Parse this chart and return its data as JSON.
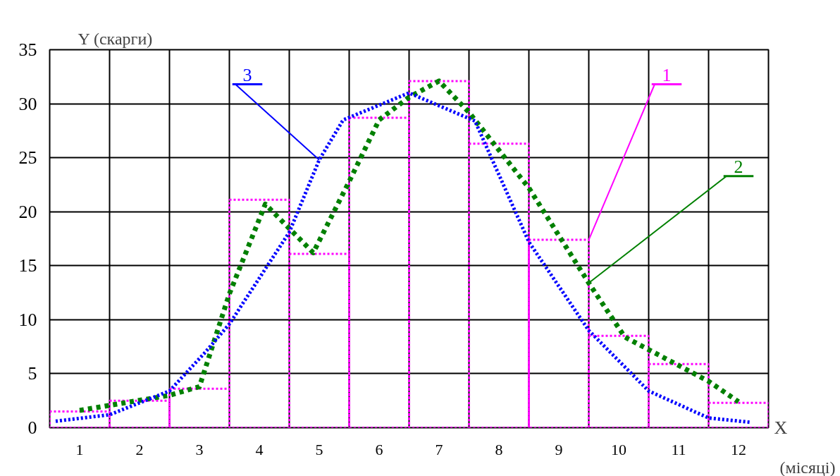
{
  "chart_data": {
    "type": "line",
    "ylabel": "Y (скарги)",
    "xlabel": "X",
    "annotations": [
      "(місяці)"
    ],
    "xlim": [
      0.5,
      12.5
    ],
    "ylim": [
      0,
      35
    ],
    "yticks": [
      0,
      5,
      10,
      15,
      20,
      25,
      30,
      35
    ],
    "xticks": [
      {
        "value": 0.5,
        "label": null
      },
      1,
      {
        "value": 1.5,
        "label": null
      },
      2,
      {
        "value": 2.5,
        "label": null
      },
      3,
      {
        "value": 3.5,
        "label": null
      },
      4,
      {
        "value": 4.5,
        "label": null
      },
      5,
      {
        "value": 5.5,
        "label": null
      },
      6,
      {
        "value": 6.5,
        "label": null
      },
      7,
      {
        "value": 7.5,
        "label": null
      },
      8,
      {
        "value": 8.5,
        "label": null
      },
      9,
      {
        "value": 9.5,
        "label": null
      },
      10,
      {
        "value": 10.5,
        "label": null
      },
      11,
      {
        "value": 11.5,
        "label": null
      },
      12,
      {
        "value": 12.5,
        "label": null
      }
    ],
    "grid": true,
    "legend": false,
    "series": [
      {
        "name": "1",
        "type": "histogram",
        "color": "#ff00ff",
        "line_style": "dotted",
        "bins": [
          0.5,
          1.5,
          2.5,
          3.5,
          4.5,
          5.5,
          6.5,
          7.5,
          8.5,
          9.5,
          10.5,
          11.5,
          12.5
        ],
        "values": [
          1.5,
          2.5,
          3.6,
          21.1,
          16.1,
          28.7,
          32.1,
          26.3,
          17.4,
          8.5,
          5.9,
          2.3
        ]
      },
      {
        "name": "2",
        "color": "#008000",
        "line_style": "dashed",
        "x": [
          1,
          2.5,
          3,
          3.5,
          4.1,
          4.9,
          5.5,
          6,
          6.5,
          7,
          7.5,
          8.5,
          9.5,
          10.1,
          11.5,
          12
        ],
        "values": [
          1.6,
          3.0,
          3.8,
          12.4,
          20.7,
          16.2,
          22.8,
          28.5,
          30.6,
          32.1,
          29.2,
          22.2,
          13.4,
          8.4,
          4.3,
          2.4
        ]
      },
      {
        "name": "3",
        "color": "#0000ff",
        "line_style": "dotted",
        "x": [
          0.6,
          1.5,
          2.5,
          3.1,
          3.5,
          4.5,
          5.0,
          5.4,
          6.5,
          7.6,
          8.5,
          9.5,
          10.5,
          11.5,
          12.2
        ],
        "values": [
          0.6,
          1.2,
          3.4,
          7.0,
          9.6,
          18.1,
          24.8,
          28.5,
          31.0,
          28.4,
          17.2,
          9.0,
          3.4,
          0.9,
          0.5
        ]
      }
    ]
  }
}
